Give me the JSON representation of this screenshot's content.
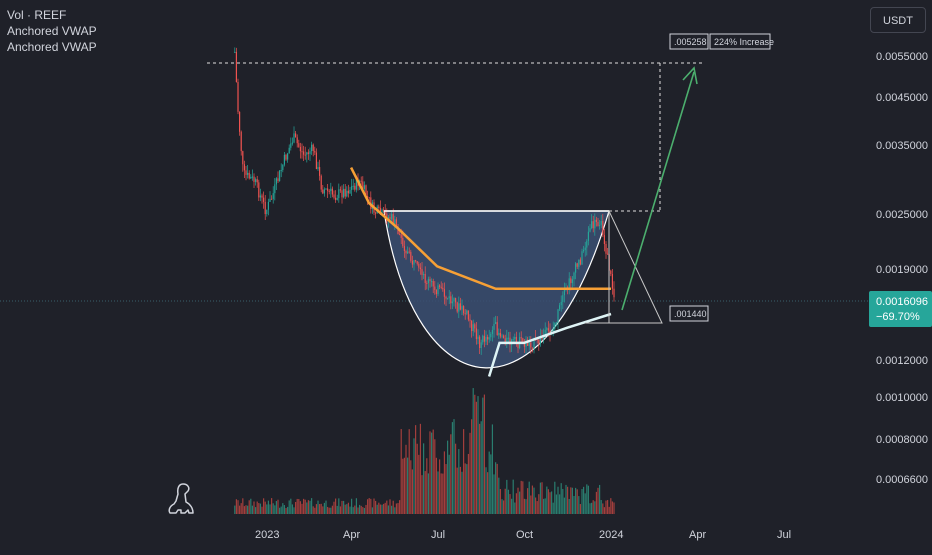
{
  "legend": {
    "volume": "Vol · REEF",
    "vwap_1": "Anchored VWAP",
    "vwap_2": "Anchored VWAP"
  },
  "currency": "USDT",
  "chart_data": {
    "type": "candlestick",
    "symbol": "REEF",
    "quote": "USDT",
    "price_axis": {
      "scale": "log",
      "ticks": [
        "0.0055000",
        "0.0045000",
        "0.0035000",
        "0.0025000",
        "0.0019000",
        "0.0012000",
        "0.0010000",
        "0.0008000",
        "0.0006600"
      ]
    },
    "time_axis": {
      "ticks": [
        "2023",
        "Apr",
        "Jul",
        "Oct",
        "2024",
        "Apr",
        "Jul"
      ]
    },
    "current_price": {
      "price": "0.0016096",
      "change": "−69.70%"
    },
    "annotations": {
      "target_price": ".005258",
      "target_change": "224% Increase",
      "support_price": ".001440"
    },
    "price_path": [
      {
        "date": "2022-11-29",
        "price": 0.0055
      },
      {
        "date": "2022-12-02",
        "price": 0.0042
      },
      {
        "date": "2022-12-08",
        "price": 0.003
      },
      {
        "date": "2022-12-20",
        "price": 0.0029
      },
      {
        "date": "2023-01-01",
        "price": 0.0025
      },
      {
        "date": "2023-01-08",
        "price": 0.0027
      },
      {
        "date": "2023-01-20",
        "price": 0.0032
      },
      {
        "date": "2023-01-30",
        "price": 0.0036
      },
      {
        "date": "2023-02-10",
        "price": 0.0033
      },
      {
        "date": "2023-02-20",
        "price": 0.0034
      },
      {
        "date": "2023-03-01",
        "price": 0.0028
      },
      {
        "date": "2023-03-15",
        "price": 0.0027
      },
      {
        "date": "2023-04-01",
        "price": 0.0028
      },
      {
        "date": "2023-04-10",
        "price": 0.0029
      },
      {
        "date": "2023-04-25",
        "price": 0.0025
      },
      {
        "date": "2023-05-15",
        "price": 0.0024
      },
      {
        "date": "2023-06-01",
        "price": 0.002
      },
      {
        "date": "2023-06-15",
        "price": 0.0018
      },
      {
        "date": "2023-07-01",
        "price": 0.0017
      },
      {
        "date": "2023-07-15",
        "price": 0.0016
      },
      {
        "date": "2023-08-01",
        "price": 0.0015
      },
      {
        "date": "2023-08-15",
        "price": 0.0013
      },
      {
        "date": "2023-09-01",
        "price": 0.0014
      },
      {
        "date": "2023-09-15",
        "price": 0.0013
      },
      {
        "date": "2023-10-01",
        "price": 0.0013
      },
      {
        "date": "2023-10-15",
        "price": 0.0013
      },
      {
        "date": "2023-11-01",
        "price": 0.0014
      },
      {
        "date": "2023-11-15",
        "price": 0.0017
      },
      {
        "date": "2023-12-01",
        "price": 0.002
      },
      {
        "date": "2023-12-10",
        "price": 0.0023
      },
      {
        "date": "2023-12-20",
        "price": 0.0024
      },
      {
        "date": "2023-12-28",
        "price": 0.002
      },
      {
        "date": "2024-01-05",
        "price": 0.0016
      }
    ],
    "vwap_orange": [
      {
        "date": "2023-04-01",
        "price": 0.0031
      },
      {
        "date": "2023-04-20",
        "price": 0.0026
      },
      {
        "date": "2023-05-20",
        "price": 0.0023
      },
      {
        "date": "2023-07-01",
        "price": 0.0019
      },
      {
        "date": "2023-09-01",
        "price": 0.0017
      },
      {
        "date": "2023-11-01",
        "price": 0.0017
      },
      {
        "date": "2024-01-01",
        "price": 0.0017
      }
    ],
    "vwap_white": [
      {
        "date": "2023-08-25",
        "price": 0.0011
      },
      {
        "date": "2023-09-05",
        "price": 0.0013
      },
      {
        "date": "2023-10-01",
        "price": 0.0013
      },
      {
        "date": "2023-11-15",
        "price": 0.0014
      },
      {
        "date": "2024-01-01",
        "price": 0.0015
      }
    ]
  }
}
